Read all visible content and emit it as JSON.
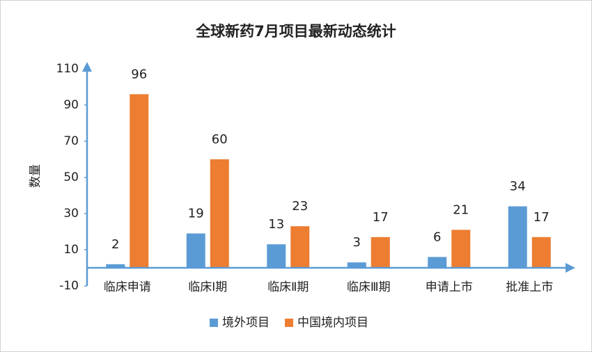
{
  "chart_data": {
    "type": "bar",
    "title": "全球新药7月项目最新动态统计",
    "y_label": "数量",
    "categories": [
      "临床申请",
      "临床Ⅰ期",
      "临床Ⅱ期",
      "临床Ⅲ期",
      "申请上市",
      "批准上市"
    ],
    "series": [
      {
        "name": "境外项目",
        "color": "#5b9bd5",
        "values": [
          2,
          19,
          13,
          3,
          6,
          34
        ]
      },
      {
        "name": "中国境内项目",
        "color": "#ed7d31",
        "values": [
          96,
          60,
          23,
          17,
          21,
          17
        ]
      }
    ],
    "ylim": [
      -10,
      110
    ],
    "yticks": [
      -10,
      10,
      30,
      50,
      70,
      90,
      110
    ],
    "grid": false,
    "legend": "bottom"
  }
}
